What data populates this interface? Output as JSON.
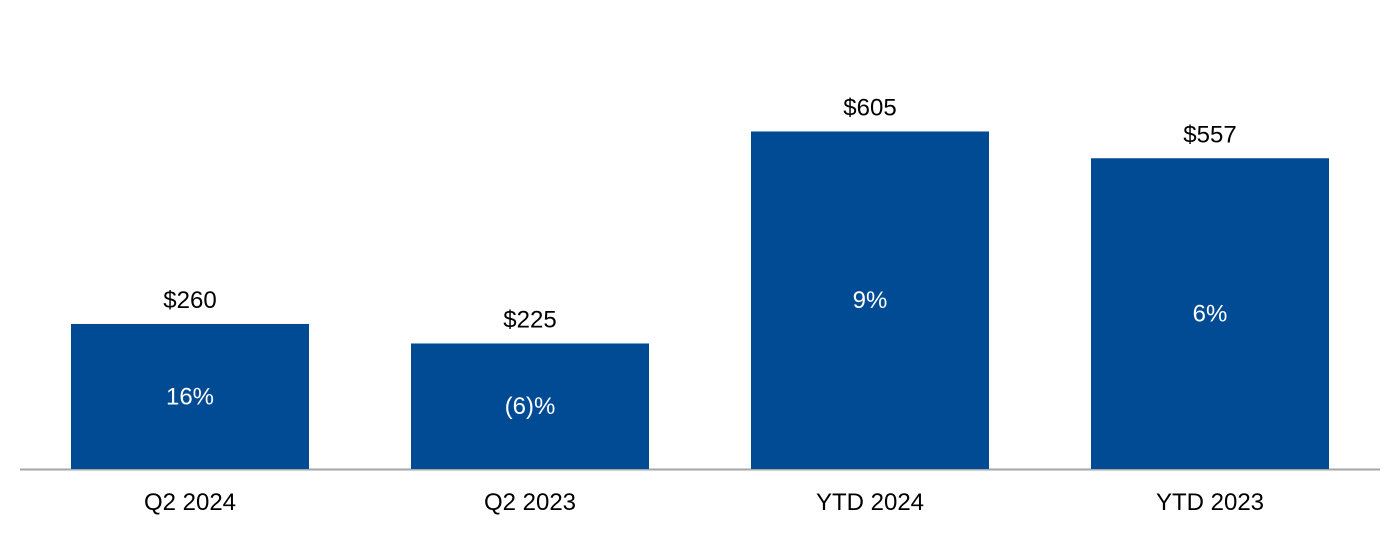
{
  "chart_data": {
    "type": "bar",
    "title": "",
    "xlabel": "",
    "ylabel": "",
    "categories": [
      "Q2 2024",
      "Q2 2023",
      "YTD 2024",
      "YTD 2023"
    ],
    "values": [
      260,
      225,
      605,
      557
    ],
    "value_labels": [
      "$260",
      "$225",
      "$605",
      "$557"
    ],
    "bar_labels": [
      "16%",
      "(6)%",
      "9%",
      "6%"
    ],
    "ylim": [
      0,
      760
    ],
    "grid": false,
    "legend": "none"
  },
  "colors": {
    "bar": "#004b93",
    "axis": "#a6a6a6",
    "value_text": "#000000",
    "bar_text": "#ffffff"
  }
}
